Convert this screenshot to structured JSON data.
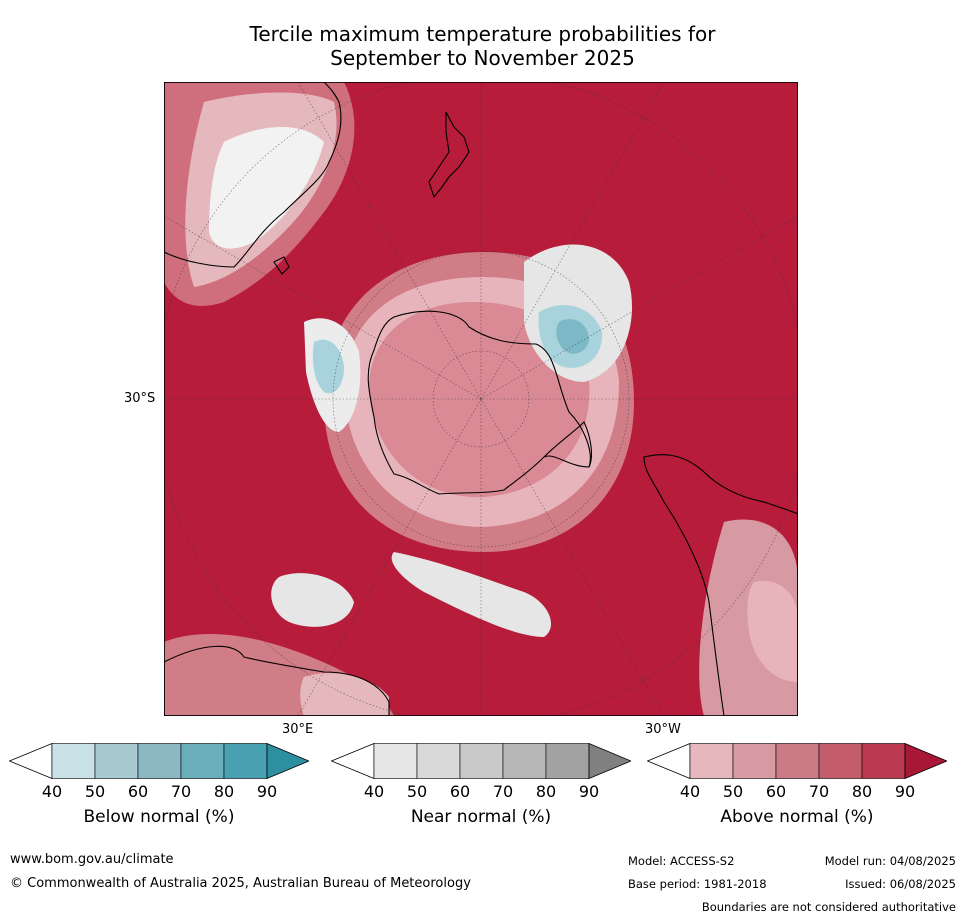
{
  "title_line1": "Tercile maximum temperature probabilities for",
  "title_line2": "September to November 2025",
  "map": {
    "lat_label": "30°S",
    "lon_label_east": "30°E",
    "lon_label_west": "30°W",
    "colors": {
      "dominant": "#b71c3b",
      "above_light": "#e8b4bb",
      "above_mid": "#d17d88",
      "near_light": "#e6e6e6",
      "below_light": "#a8d3dc",
      "below_mid": "#7cb8c6",
      "coast": "#000000"
    }
  },
  "legends": [
    {
      "name": "below",
      "label": "Below normal (%)",
      "ticks": [
        "40",
        "50",
        "60",
        "70",
        "80",
        "90"
      ],
      "colors": [
        "#ffffff",
        "#c8e2e8",
        "#a7c9d0",
        "#8cb8c4",
        "#6aaebb",
        "#47a1b1",
        "#2e8fa0"
      ]
    },
    {
      "name": "near",
      "label": "Near normal (%)",
      "ticks": [
        "40",
        "50",
        "60",
        "70",
        "80",
        "90"
      ],
      "colors": [
        "#ffffff",
        "#e6e6e6",
        "#d9d9d9",
        "#c9c9c9",
        "#b7b7b7",
        "#a2a2a2",
        "#808080"
      ]
    },
    {
      "name": "above",
      "label": "Above normal (%)",
      "ticks": [
        "40",
        "50",
        "60",
        "70",
        "80",
        "90"
      ],
      "colors": [
        "#ffffff",
        "#e5b8be",
        "#d79aa3",
        "#ca7b86",
        "#c35d6c",
        "#bb3a51",
        "#a81836"
      ]
    }
  ],
  "footer": {
    "website": "www.bom.gov.au/climate",
    "copyright": "© Commonwealth of Australia 2025, Australian Bureau of Meteorology",
    "model": "Model: ACCESS-S2",
    "model_run": "Model run: 04/08/2025",
    "base_period": "Base period: 1981-2018",
    "issued": "Issued: 06/08/2025",
    "disclaimer": "Boundaries are not considered authoritative"
  }
}
